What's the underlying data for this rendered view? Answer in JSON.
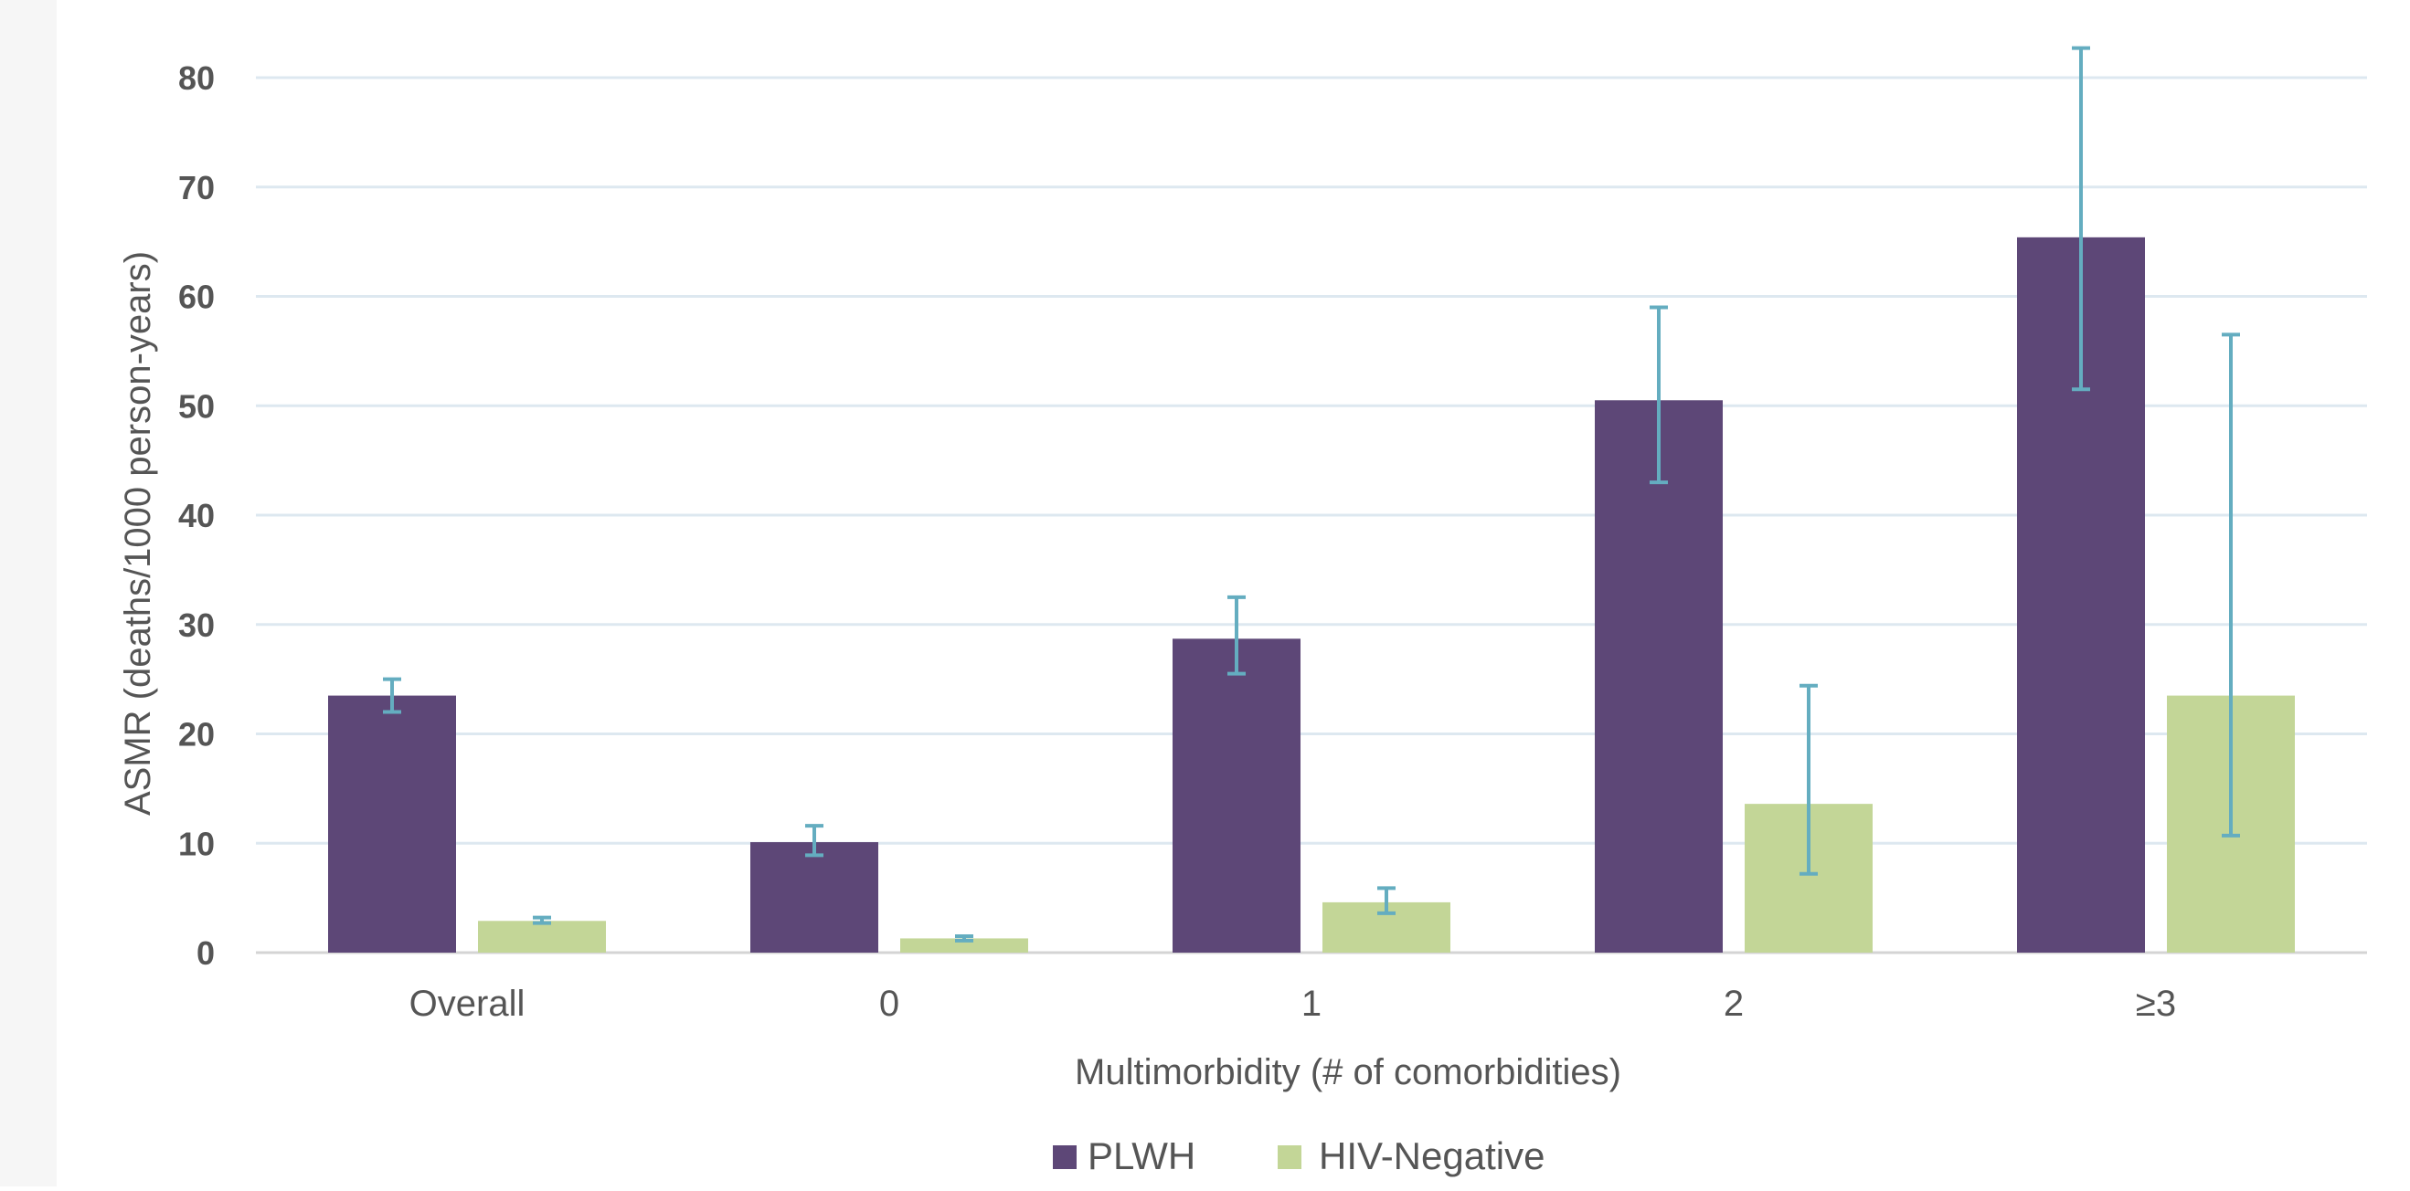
{
  "chart_data": {
    "type": "bar",
    "title": "",
    "xlabel": "Multimorbidity (# of comorbidities)",
    "ylabel": "ASMR (deaths/1000 person-years)",
    "categories": [
      "Overall",
      "0",
      "1",
      "2",
      "≥3"
    ],
    "ylim": [
      0,
      80
    ],
    "yticks": [
      0,
      10,
      20,
      30,
      40,
      50,
      60,
      70,
      80
    ],
    "grid": true,
    "legend_position": "bottom-center",
    "series": [
      {
        "name": "PLWH",
        "color": "#5d4777",
        "values": [
          23.5,
          10.1,
          28.7,
          50.5,
          65.4
        ],
        "error_low": [
          22.0,
          8.9,
          25.5,
          43.0,
          51.5
        ],
        "error_high": [
          25.0,
          11.6,
          32.5,
          59.0,
          82.7
        ]
      },
      {
        "name": "HIV-Negative",
        "color": "#c3d697",
        "values": [
          2.9,
          1.3,
          4.6,
          13.6,
          23.5
        ],
        "error_low": [
          2.7,
          1.1,
          3.6,
          7.2,
          10.7
        ],
        "error_high": [
          3.2,
          1.5,
          5.9,
          24.4,
          56.5
        ]
      }
    ],
    "error_bar_color": "#64adc0",
    "grid_color": "#dde8f0",
    "axis_color": "#d4d4d4"
  }
}
